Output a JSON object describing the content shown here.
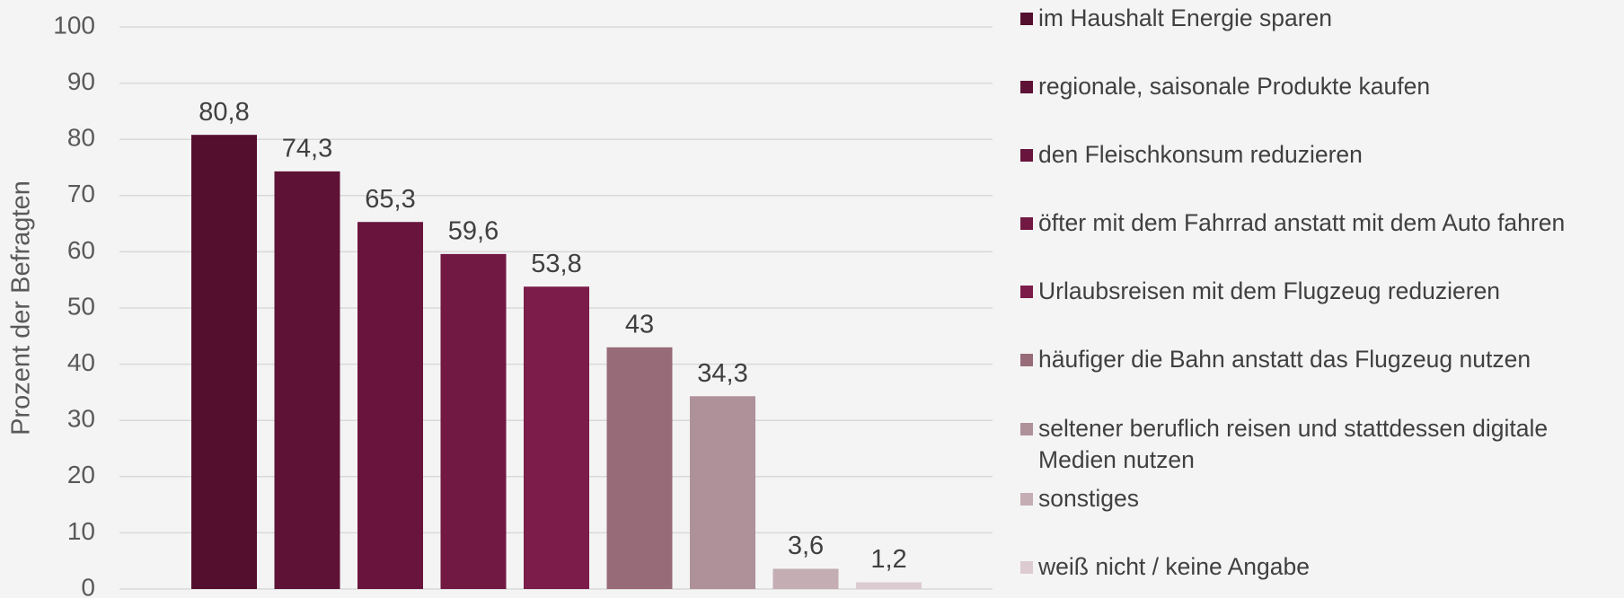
{
  "chart_data": {
    "type": "bar",
    "y_axis_label": "Prozent der Befragten",
    "categories": [
      "im Haushalt Energie sparen",
      "regionale, saisonale Produkte kaufen",
      "den Fleischkonsum reduzieren",
      "öfter mit dem Fahrrad anstatt mit dem Auto fahren",
      "Urlaubsreisen mit dem Flugzeug reduzieren",
      "häufiger die Bahn anstatt das Flugzeug nutzen",
      "seltener beruflich reisen und stattdessen digitale Medien nutzen",
      "sonstiges",
      "weiß nicht / keine Angabe"
    ],
    "values": [
      80.8,
      74.3,
      65.3,
      59.6,
      53.8,
      43,
      34.3,
      3.6,
      1.2
    ],
    "value_labels": [
      "80,8",
      "74,3",
      "65,3",
      "59,6",
      "53,8",
      "43",
      "34,3",
      "3,6",
      "1,2"
    ],
    "colors": [
      "#550f2e",
      "#5e1236",
      "#68143c",
      "#711843",
      "#7c1c4a",
      "#976b78",
      "#ae9199",
      "#c4adb3",
      "#dccbd0"
    ],
    "ylim": [
      0,
      100
    ],
    "yticks": [
      0,
      10,
      20,
      30,
      40,
      50,
      60,
      70,
      80,
      90,
      100
    ],
    "grid": true,
    "legend": "right"
  }
}
